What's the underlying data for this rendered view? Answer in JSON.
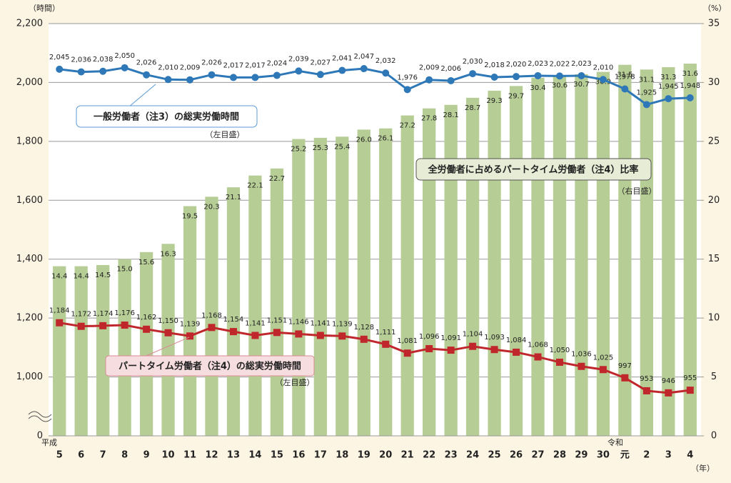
{
  "chart_data": {
    "type": "bar-line",
    "y_unit": "（時間）",
    "y2_unit": "（%）",
    "x_unit": "（年）",
    "era_labels": {
      "heisei": "平成",
      "reiwa": "令和"
    },
    "categories": [
      "5",
      "6",
      "7",
      "8",
      "9",
      "10",
      "11",
      "12",
      "13",
      "14",
      "15",
      "16",
      "17",
      "18",
      "19",
      "20",
      "21",
      "22",
      "23",
      "24",
      "25",
      "26",
      "27",
      "28",
      "29",
      "30",
      "元",
      "2",
      "3",
      "4"
    ],
    "series": [
      {
        "name": "全労働者に占めるパートタイム労働者（注4）比率",
        "note": "（右目盛）",
        "type": "bar",
        "axis": "y2",
        "color": "#b7cd96",
        "values": [
          14.4,
          14.4,
          14.5,
          15.0,
          15.6,
          16.3,
          19.5,
          20.3,
          21.1,
          22.1,
          22.7,
          25.2,
          25.3,
          25.4,
          26.0,
          26.1,
          27.2,
          27.8,
          28.1,
          28.7,
          29.3,
          29.7,
          30.4,
          30.6,
          30.7,
          30.9,
          31.5,
          31.1,
          31.3,
          31.6
        ],
        "value_labels": [
          "14.4",
          "14.4",
          "14.5",
          "15.0",
          "15.6",
          "16.3",
          "19.5",
          "20.3",
          "21.1",
          "22.1",
          "22.7",
          "25.2",
          "25.3",
          "25.4",
          "26.0",
          "26.1",
          "27.2",
          "27.8",
          "28.1",
          "28.7",
          "29.3",
          "29.7",
          "30.4",
          "30.6",
          "30.7",
          "30.9",
          "31.5",
          "31.1",
          "31.3",
          "31.6"
        ]
      },
      {
        "name": "一般労働者（注3）の総実労働時間",
        "note": "（左目盛）",
        "type": "line",
        "axis": "y",
        "color": "#2e78b8",
        "marker": "circle",
        "values": [
          2045,
          2036,
          2038,
          2050,
          2026,
          2010,
          2009,
          2026,
          2017,
          2017,
          2024,
          2039,
          2027,
          2041,
          2047,
          2032,
          1976,
          2009,
          2006,
          2030,
          2018,
          2020,
          2023,
          2022,
          2023,
          2010,
          1978,
          1925,
          1945,
          1948
        ],
        "value_labels": [
          "2,045",
          "2,036",
          "2,038",
          "2,050",
          "2,026",
          "2,010",
          "2,009",
          "2,026",
          "2,017",
          "2,017",
          "2,024",
          "2,039",
          "2,027",
          "2,041",
          "2,047",
          "2,032",
          "1,976",
          "2,009",
          "2,006",
          "2,030",
          "2,018",
          "2,020",
          "2,023",
          "2,022",
          "2,023",
          "2,010",
          "1,978",
          "1,925",
          "1,945",
          "1,948"
        ]
      },
      {
        "name": "パートタイム労働者（注4）の総実労働時間",
        "note": "（左目盛）",
        "type": "line",
        "axis": "y",
        "color": "#c0272d",
        "marker": "square",
        "values": [
          1184,
          1172,
          1174,
          1176,
          1162,
          1150,
          1139,
          1168,
          1154,
          1141,
          1151,
          1146,
          1141,
          1139,
          1128,
          1111,
          1081,
          1096,
          1091,
          1104,
          1093,
          1084,
          1068,
          1050,
          1036,
          1025,
          997,
          953,
          946,
          955
        ],
        "value_labels": [
          "1,184",
          "1,172",
          "1,174",
          "1,176",
          "1,162",
          "1,150",
          "1,139",
          "1,168",
          "1,154",
          "1,141",
          "1,151",
          "1,146",
          "1,141",
          "1,139",
          "1,128",
          "1,111",
          "1,081",
          "1,096",
          "1,091",
          "1,104",
          "1,093",
          "1,084",
          "1,068",
          "1,050",
          "1,036",
          "1,025",
          "997",
          "953",
          "946",
          "955"
        ]
      }
    ],
    "ylim": [
      0,
      2200
    ],
    "axis_break": [
      0,
      800
    ],
    "yticks": [
      0,
      {
        "value": 1000,
        "label": "1,000"
      },
      {
        "value": 1200,
        "label": "1,200"
      },
      {
        "value": 1400,
        "label": "1,400"
      },
      {
        "value": 1600,
        "label": "1,600"
      },
      {
        "value": 1800,
        "label": "1,800"
      },
      {
        "value": 2000,
        "label": "2,000"
      },
      {
        "value": 2200,
        "label": "2,200"
      }
    ],
    "y2lim": [
      0,
      35
    ],
    "y2ticks": [
      0,
      5,
      10,
      15,
      20,
      25,
      30,
      35
    ],
    "grid": true
  }
}
